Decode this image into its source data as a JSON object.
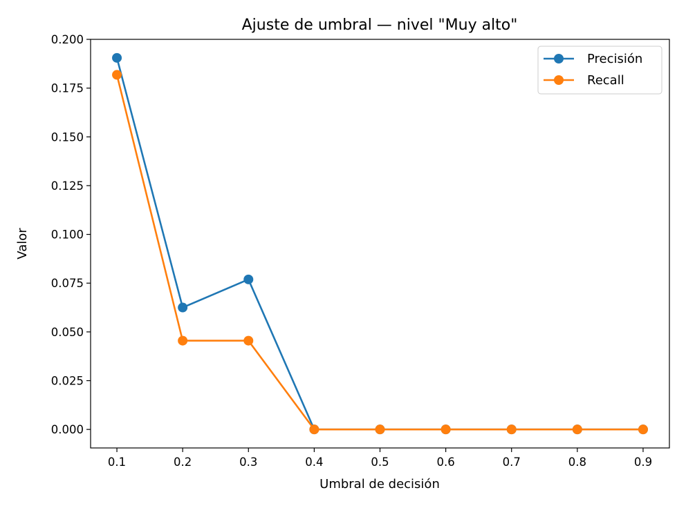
{
  "chart_data": {
    "type": "line",
    "title": "Ajuste de umbral — nivel \"Muy alto\"",
    "xlabel": "Umbral de decisión",
    "ylabel": "Valor",
    "x": [
      0.1,
      0.2,
      0.3,
      0.4,
      0.5,
      0.6,
      0.7,
      0.8,
      0.9
    ],
    "x_tick_labels": [
      "0.1",
      "0.2",
      "0.3",
      "0.4",
      "0.5",
      "0.6",
      "0.7",
      "0.8",
      "0.9"
    ],
    "y_ticks": [
      0.0,
      0.025,
      0.05,
      0.075,
      0.1,
      0.125,
      0.15,
      0.175,
      0.2
    ],
    "y_tick_labels": [
      "0.000",
      "0.025",
      "0.050",
      "0.075",
      "0.100",
      "0.125",
      "0.150",
      "0.175",
      "0.200"
    ],
    "xlim": [
      0.06,
      0.94
    ],
    "ylim": [
      -0.0095,
      0.2
    ],
    "grid": false,
    "legend_position": "top-right",
    "series": [
      {
        "name": "Precisión",
        "color": "#1f77b4",
        "values": [
          0.1905,
          0.0625,
          0.0769,
          0.0,
          0.0,
          0.0,
          0.0,
          0.0,
          0.0
        ]
      },
      {
        "name": "Recall",
        "color": "#ff7f0e",
        "values": [
          0.1818,
          0.0455,
          0.0455,
          0.0,
          0.0,
          0.0,
          0.0,
          0.0,
          0.0
        ]
      }
    ]
  }
}
